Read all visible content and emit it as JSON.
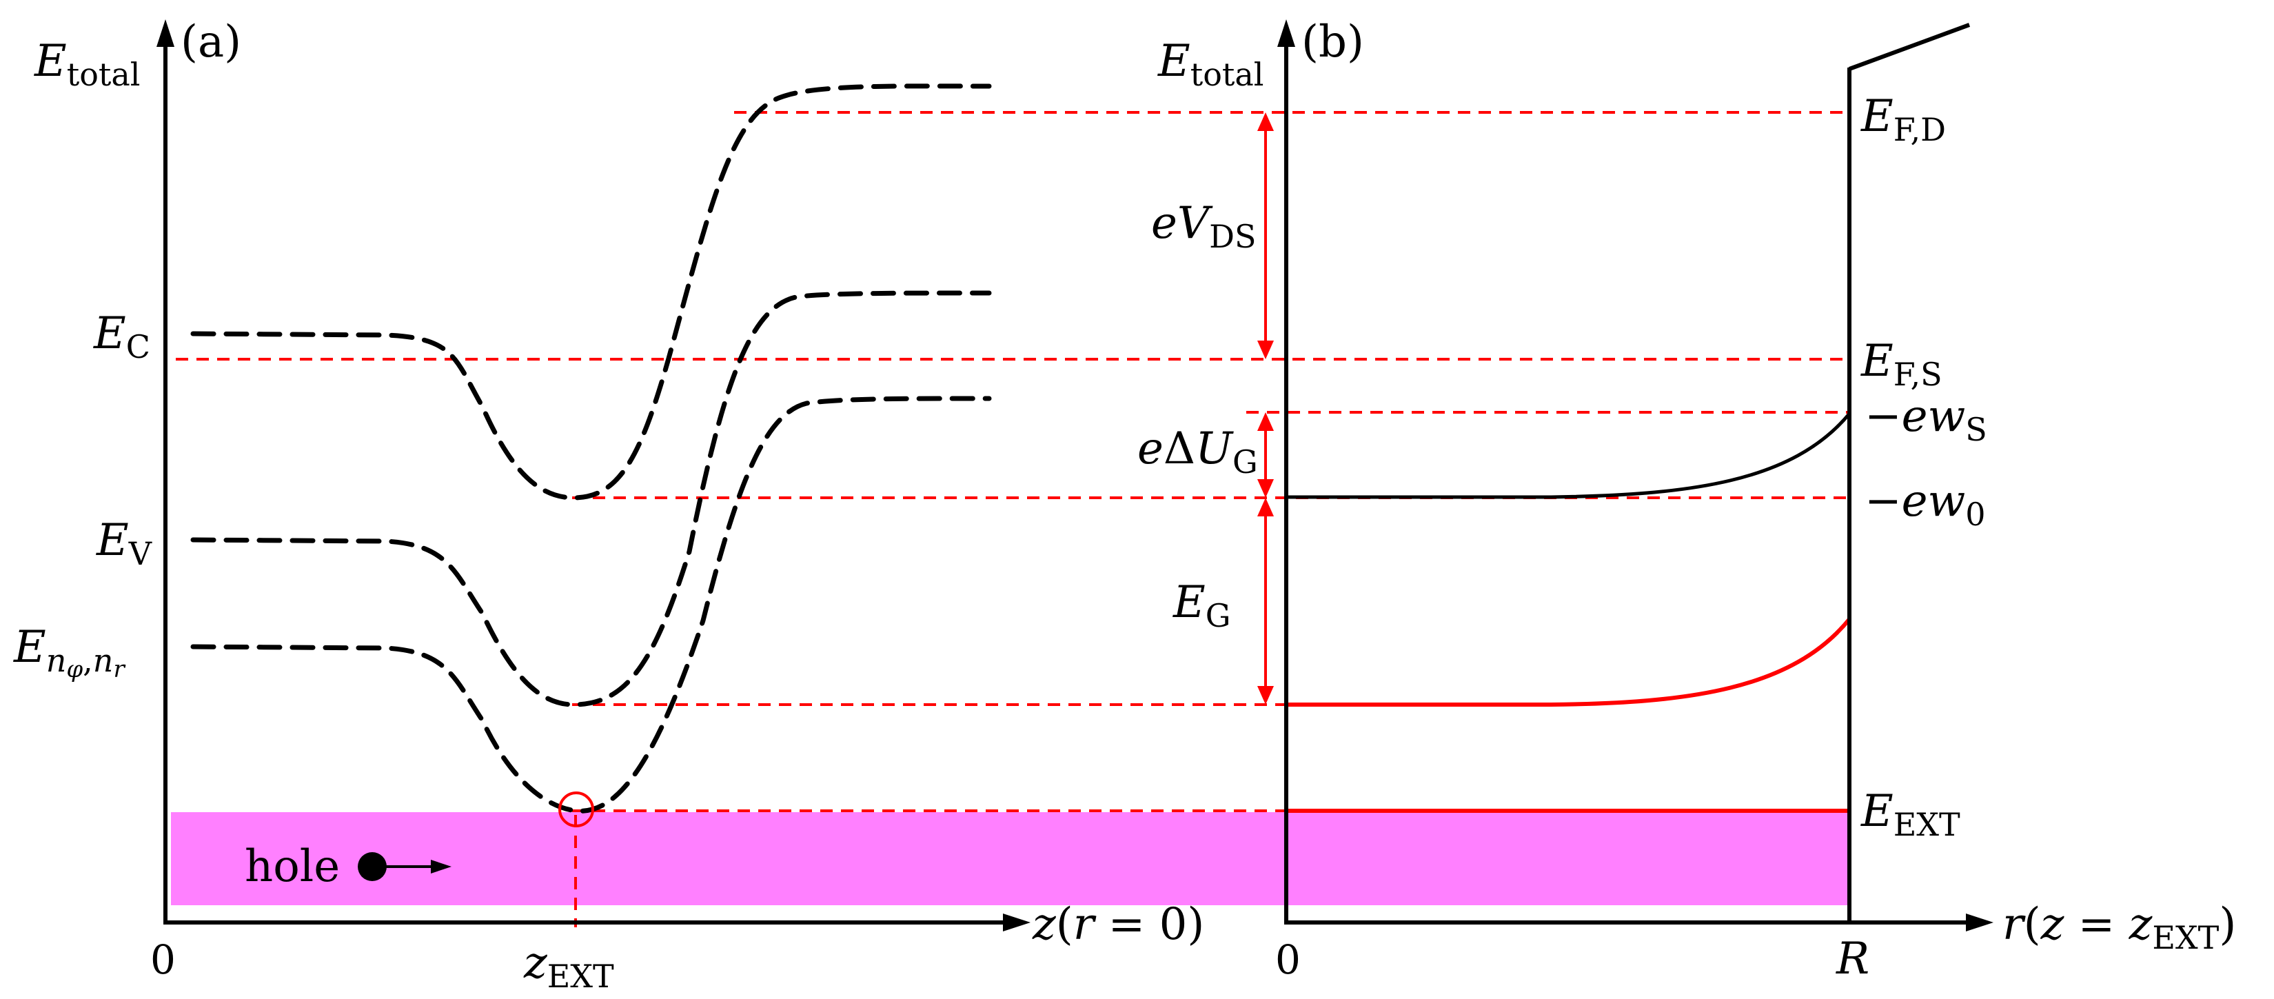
{
  "panel_a": {
    "panel_label": "(a)",
    "y_axis_label": {
      "main": "E",
      "sub": "total"
    },
    "x_axis_label": {
      "var": "z",
      "open": "(",
      "cond_var": "r",
      "rest": " = 0)"
    },
    "x_tick_zero": "0",
    "x_tick_zext": {
      "main": "z",
      "sub": "EXT"
    },
    "level_labels": {
      "ec": {
        "main": "E",
        "sub": "C"
      },
      "ev": {
        "main": "E",
        "sub": "V"
      },
      "en": {
        "main": "E",
        "sub1": "n",
        "sub2": "φ",
        "comma": ",",
        "sub3": "n",
        "sub4": "r"
      }
    },
    "hole_label": "hole"
  },
  "panel_b": {
    "panel_label": "(b)",
    "y_axis_label": {
      "main": "E",
      "sub": "total"
    },
    "x_axis_label": {
      "var": "r",
      "open": "(",
      "cond_var": "z",
      "eq": " = ",
      "cond_var2": "z",
      "sub": "EXT",
      "close": ")"
    },
    "x_tick_zero": "0",
    "x_tick_r": "R",
    "level_labels": {
      "efd": {
        "main": "E",
        "sub": "F,D"
      },
      "efs": {
        "main": "E",
        "sub": "F,S"
      },
      "ews": {
        "minus": "−",
        "e": "e",
        "w": "w",
        "sub": "S"
      },
      "ew0": {
        "minus": "−",
        "e": "e",
        "w": "w",
        "sub": "0"
      },
      "eext": {
        "main": "E",
        "sub": "EXT"
      }
    },
    "gaps": {
      "evds": {
        "e": "e",
        "v": "V",
        "sub": "DS"
      },
      "edug": {
        "e": "e",
        "delta": "Δ",
        "u": "U",
        "sub": "G"
      },
      "eg": {
        "main": "E",
        "sub": "G"
      }
    }
  },
  "colors": {
    "hole_band": "#ff80ff",
    "reference_line": "#ff0000",
    "band_curve": "#000000",
    "axis": "#000000"
  }
}
